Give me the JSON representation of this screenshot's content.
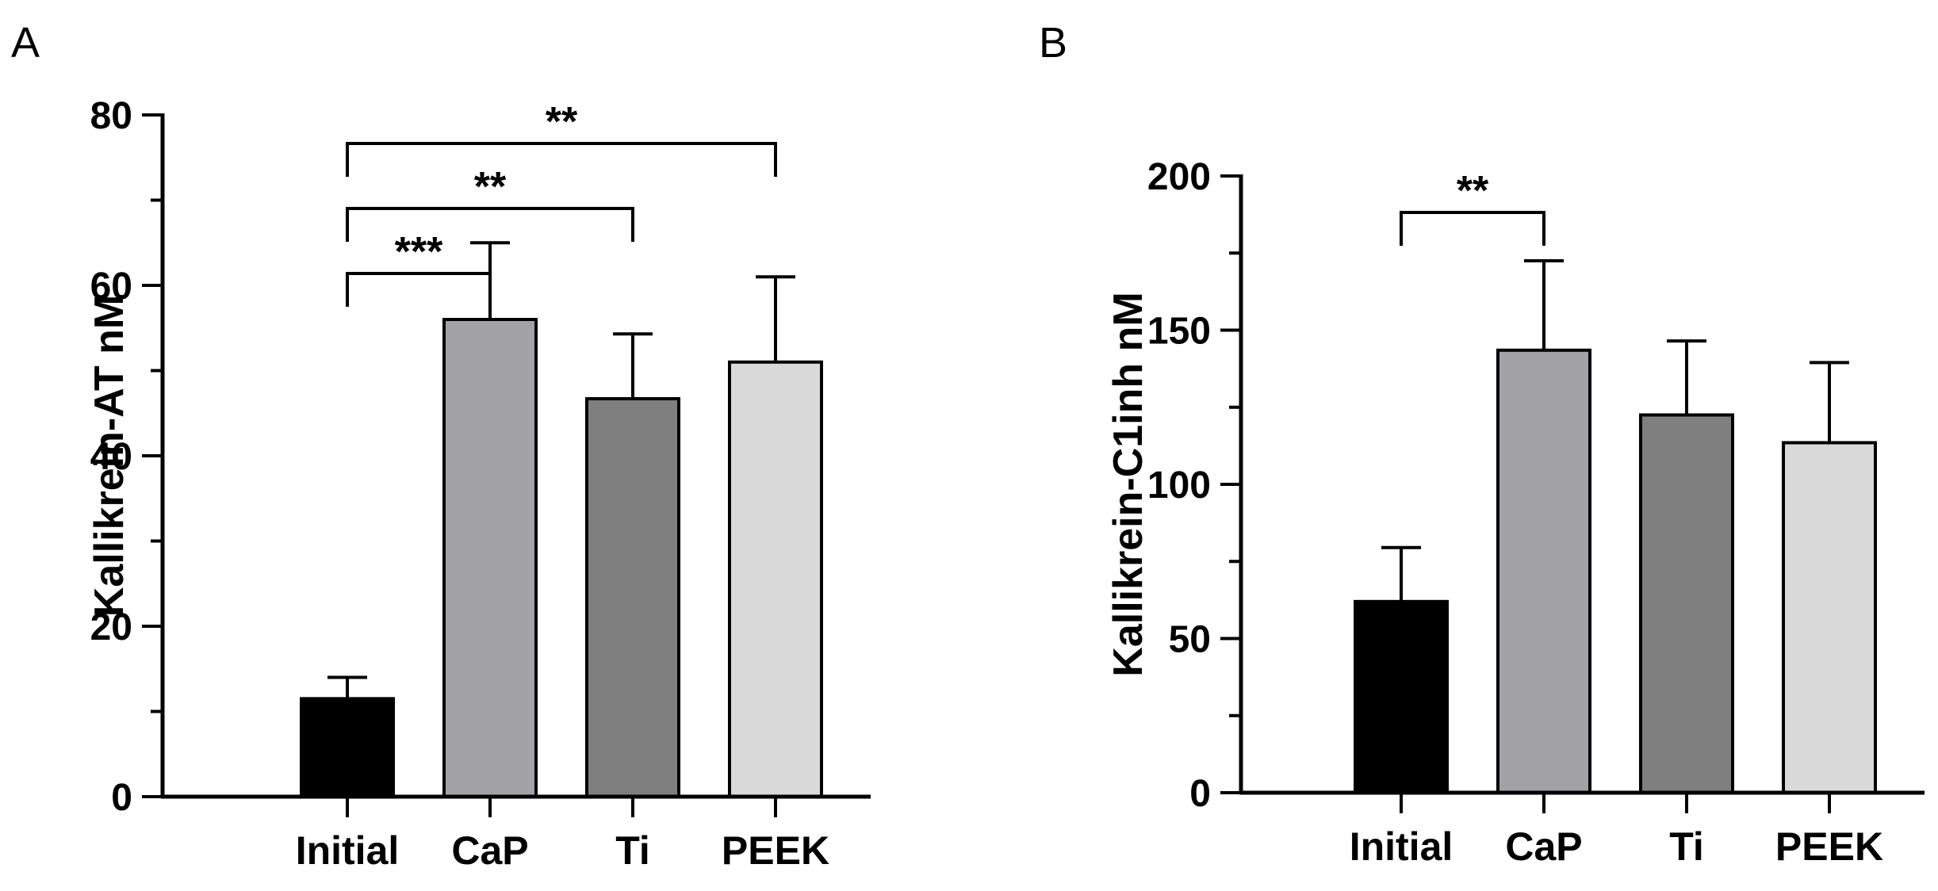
{
  "chart_data": [
    {
      "panel": "A",
      "type": "bar",
      "title": "",
      "xlabel": "",
      "ylabel": "Kallikrein-AT nM",
      "ylim": [
        0,
        80
      ],
      "yticks": [
        0,
        20,
        40,
        60,
        80
      ],
      "categories": [
        "Initial",
        "CaP",
        "Ti",
        "PEEK"
      ],
      "values": [
        11.5,
        56,
        46.7,
        51
      ],
      "errors": [
        2.5,
        9,
        7.6,
        10
      ],
      "colors": [
        "#000000",
        "#a3a2a7",
        "#7f7f7f",
        "#d9d9d9"
      ],
      "significance": [
        {
          "from": "Initial",
          "to": "CaP",
          "label": "***"
        },
        {
          "from": "Initial",
          "to": "Ti",
          "label": "**"
        },
        {
          "from": "Initial",
          "to": "PEEK",
          "label": "**"
        }
      ],
      "grid": false,
      "legend": "none"
    },
    {
      "panel": "B",
      "type": "bar",
      "title": "",
      "xlabel": "",
      "ylabel": "Kallikrein-C1inh nM",
      "ylim": [
        0,
        200
      ],
      "yticks": [
        0,
        50,
        100,
        150,
        200
      ],
      "categories": [
        "Initial",
        "CaP",
        "Ti",
        "PEEK"
      ],
      "values": [
        62,
        143.5,
        122.5,
        113.5
      ],
      "errors": [
        17.5,
        29,
        24,
        26
      ],
      "colors": [
        "#000000",
        "#a3a2a7",
        "#7f7f7f",
        "#d9d9d9"
      ],
      "significance": [
        {
          "from": "Initial",
          "to": "CaP",
          "label": "**"
        }
      ],
      "grid": false,
      "legend": "none"
    }
  ]
}
